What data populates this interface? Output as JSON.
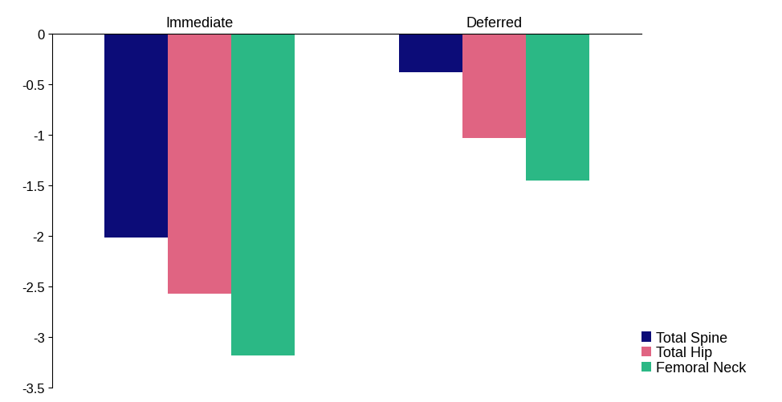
{
  "chart_data": {
    "type": "bar",
    "categories": [
      "Immediate",
      "Deferred"
    ],
    "series": [
      {
        "name": "Total Spine",
        "color": "#0c0c78",
        "values": [
          -2.01,
          -0.38
        ]
      },
      {
        "name": "Total Hip",
        "color": "#e06482",
        "values": [
          -2.57,
          -1.03
        ]
      },
      {
        "name": "Femoral Neck",
        "color": "#2bb885",
        "values": [
          -3.18,
          -1.45
        ]
      }
    ],
    "ylim": [
      -3.5,
      0
    ],
    "yticks": [
      0,
      -0.5,
      -1,
      -1.5,
      -2,
      -2.5,
      -3,
      -3.5
    ],
    "grid": false,
    "legend": "lower right"
  }
}
